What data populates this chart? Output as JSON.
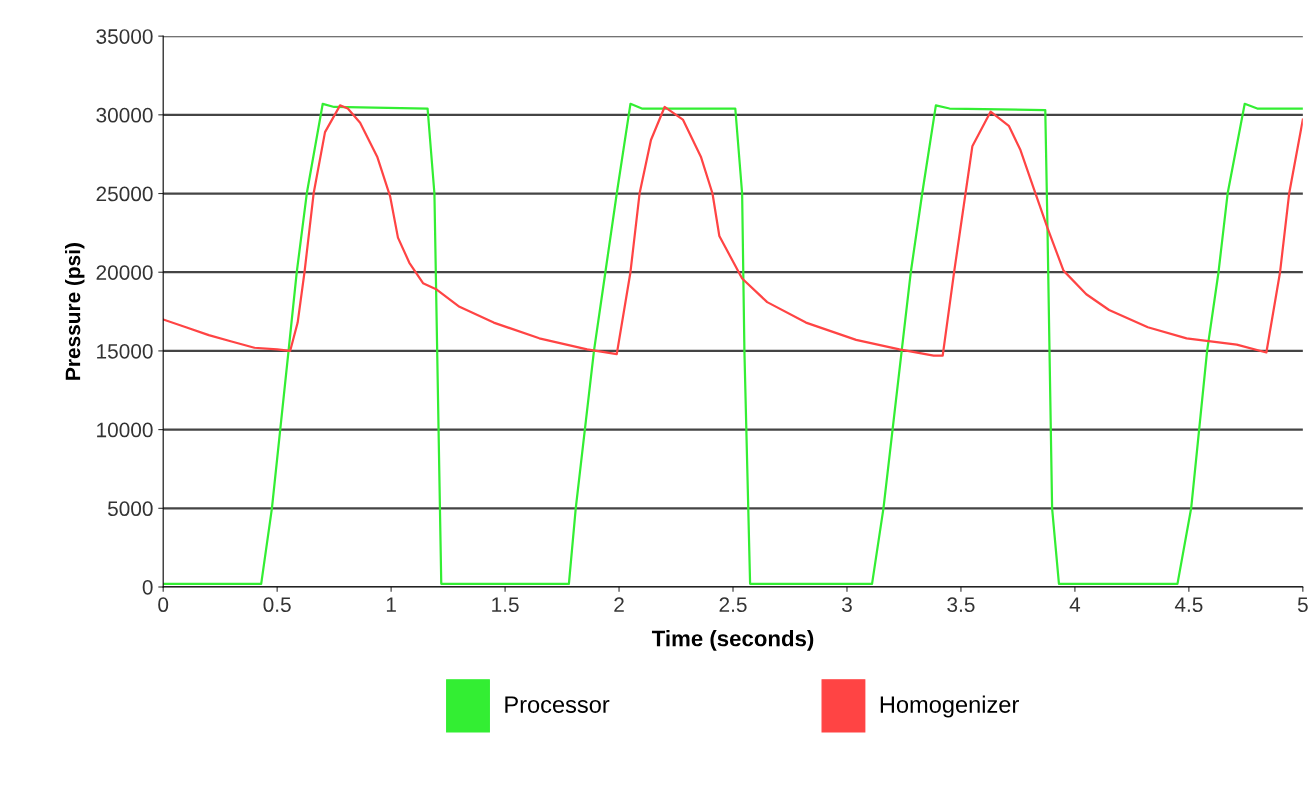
{
  "chart_data": {
    "type": "line",
    "xlabel": "Time (seconds)",
    "ylabel": "Pressure (psi)",
    "xlim": [
      0,
      5
    ],
    "xticks": [
      0,
      0.5,
      1,
      1.5,
      2,
      2.5,
      3,
      3.5,
      4,
      4.5,
      5
    ],
    "ylim": [
      0,
      35000
    ],
    "yticks": [
      0,
      5000,
      10000,
      15000,
      20000,
      25000,
      30000,
      35000
    ],
    "grid": "y",
    "legend": "bottom",
    "marker": "none",
    "line_style": "solid",
    "series": [
      {
        "name": "Processor",
        "color": "#33ee33",
        "x": [
          0,
          0.43,
          0.477,
          0.55,
          0.586,
          0.63,
          0.7,
          0.75,
          1.16,
          1.19,
          1.22,
          1.78,
          1.81,
          1.89,
          1.94,
          1.99,
          2.05,
          2.1,
          2.51,
          2.54,
          2.55,
          2.575,
          3.11,
          3.16,
          3.24,
          3.28,
          3.33,
          3.39,
          3.45,
          3.87,
          3.88,
          3.9,
          3.93,
          4.45,
          4.51,
          4.58,
          4.63,
          4.67,
          4.745,
          4.8,
          5.0
        ],
        "values": [
          200,
          200,
          5000,
          15000,
          20000,
          25000,
          30700,
          30500,
          30400,
          25000,
          200,
          200,
          5000,
          15000,
          20000,
          25000,
          30700,
          30400,
          30400,
          25000,
          15000,
          200,
          200,
          5000,
          15000,
          20000,
          25000,
          30600,
          30400,
          30300,
          22500,
          5000,
          200,
          200,
          5000,
          15000,
          20000,
          25000,
          30700,
          30400,
          30400
        ]
      },
      {
        "name": "Homogenizer",
        "color": "#ff4444",
        "x": [
          0,
          0.1,
          0.2,
          0.3,
          0.4,
          0.5,
          0.557,
          0.59,
          0.62,
          0.66,
          0.71,
          0.776,
          0.81,
          0.864,
          0.94,
          0.996,
          1.03,
          1.08,
          1.14,
          1.2,
          1.3,
          1.45,
          1.65,
          1.86,
          1.99,
          2.05,
          2.09,
          2.14,
          2.2,
          2.28,
          2.36,
          2.41,
          2.44,
          2.54,
          2.65,
          2.82,
          3.04,
          3.23,
          3.38,
          3.42,
          3.47,
          3.52,
          3.55,
          3.63,
          3.71,
          3.76,
          3.82,
          3.88,
          3.95,
          4.05,
          4.15,
          4.32,
          4.49,
          4.71,
          4.84,
          4.9,
          4.94,
          5.0
        ],
        "values": [
          17000,
          16500,
          16000,
          15600,
          15200,
          15100,
          15000,
          16800,
          20000,
          25000,
          28900,
          30600,
          30400,
          29500,
          27300,
          24800,
          22200,
          20600,
          19300,
          18900,
          17800,
          16800,
          15800,
          15100,
          14800,
          20000,
          25000,
          28400,
          30500,
          29700,
          27300,
          25000,
          22300,
          19600,
          18100,
          16800,
          15700,
          15100,
          14700,
          14700,
          20000,
          25000,
          28000,
          30200,
          29300,
          27800,
          25300,
          22800,
          20100,
          18600,
          17600,
          16500,
          15800,
          15400,
          14900,
          20000,
          25000,
          29700
        ]
      }
    ]
  }
}
